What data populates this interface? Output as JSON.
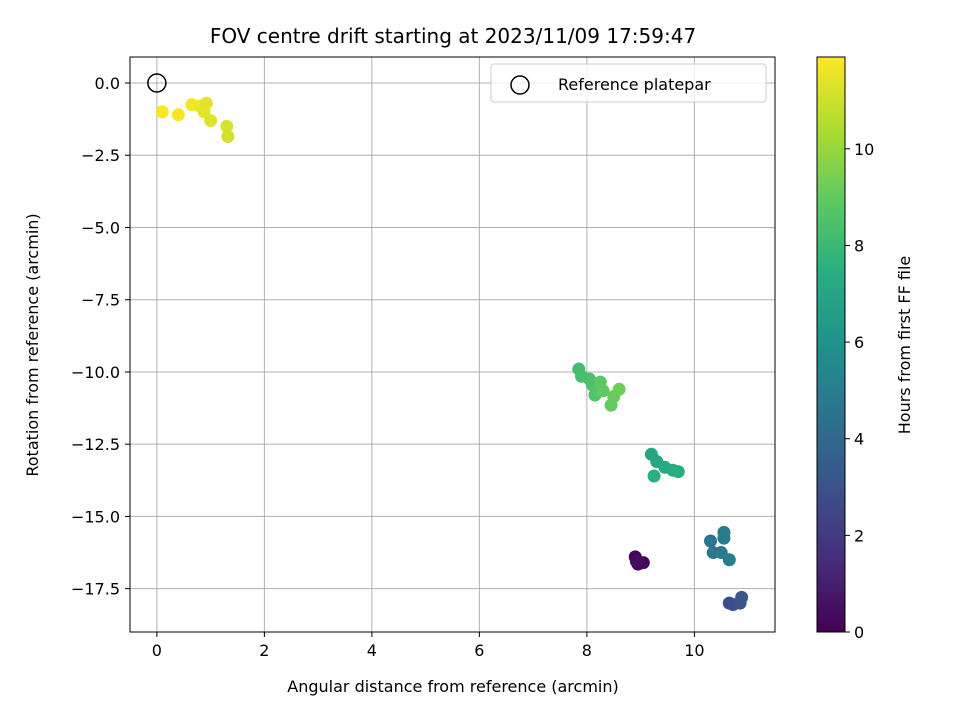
{
  "chart_data": {
    "type": "scatter",
    "title": "FOV centre drift starting at 2023/11/09 17:59:47",
    "xlabel": "Angular distance from reference (arcmin)",
    "ylabel": "Rotation from reference (arcmin)",
    "xlim": [
      -0.5,
      11.5
    ],
    "ylim": [
      -19.0,
      0.9
    ],
    "xticks": [
      0,
      2,
      4,
      6,
      8,
      10
    ],
    "yticks": [
      0.0,
      -2.5,
      -5.0,
      -7.5,
      -10.0,
      -12.5,
      -15.0,
      -17.5
    ],
    "grid": true,
    "legend": {
      "placement": "top-right",
      "entries": [
        {
          "label": "Reference platepar",
          "marker": "open-circle"
        }
      ]
    },
    "reference_point": {
      "x": 0.0,
      "y": 0.0
    },
    "colorbar": {
      "label": "Hours from first FF file",
      "range": [
        0,
        11.9
      ],
      "ticks": [
        0,
        2,
        4,
        6,
        8,
        10
      ],
      "colormap": "viridis"
    },
    "points": [
      {
        "x": 8.9,
        "y": -16.4,
        "h": 0.1
      },
      {
        "x": 8.95,
        "y": -16.65,
        "h": 0.2
      },
      {
        "x": 9.05,
        "y": -16.6,
        "h": 0.3
      },
      {
        "x": 8.92,
        "y": -16.55,
        "h": 0.4
      },
      {
        "x": 10.65,
        "y": -18.0,
        "h": 2.6
      },
      {
        "x": 10.72,
        "y": -18.05,
        "h": 2.8
      },
      {
        "x": 10.85,
        "y": -18.0,
        "h": 3.0
      },
      {
        "x": 10.88,
        "y": -17.8,
        "h": 3.2
      },
      {
        "x": 10.3,
        "y": -15.85,
        "h": 4.6
      },
      {
        "x": 10.35,
        "y": -16.25,
        "h": 4.7
      },
      {
        "x": 10.5,
        "y": -16.25,
        "h": 4.8
      },
      {
        "x": 10.55,
        "y": -15.55,
        "h": 4.9
      },
      {
        "x": 10.55,
        "y": -15.75,
        "h": 5.0
      },
      {
        "x": 10.65,
        "y": -16.5,
        "h": 5.1
      },
      {
        "x": 9.2,
        "y": -12.85,
        "h": 7.0
      },
      {
        "x": 9.3,
        "y": -13.1,
        "h": 7.1
      },
      {
        "x": 9.45,
        "y": -13.3,
        "h": 7.2
      },
      {
        "x": 9.6,
        "y": -13.4,
        "h": 7.3
      },
      {
        "x": 9.7,
        "y": -13.45,
        "h": 7.4
      },
      {
        "x": 9.25,
        "y": -13.6,
        "h": 7.5
      },
      {
        "x": 7.85,
        "y": -9.9,
        "h": 8.2
      },
      {
        "x": 7.9,
        "y": -10.15,
        "h": 8.3
      },
      {
        "x": 8.05,
        "y": -10.25,
        "h": 8.4
      },
      {
        "x": 8.1,
        "y": -10.45,
        "h": 8.5
      },
      {
        "x": 8.15,
        "y": -10.8,
        "h": 8.6
      },
      {
        "x": 8.2,
        "y": -10.6,
        "h": 8.7
      },
      {
        "x": 8.25,
        "y": -10.35,
        "h": 8.8
      },
      {
        "x": 8.3,
        "y": -10.65,
        "h": 8.9
      },
      {
        "x": 8.45,
        "y": -11.15,
        "h": 9.0
      },
      {
        "x": 8.5,
        "y": -10.85,
        "h": 9.1
      },
      {
        "x": 8.6,
        "y": -10.6,
        "h": 9.2
      },
      {
        "x": 0.1,
        "y": -1.0,
        "h": 11.9
      },
      {
        "x": 0.4,
        "y": -1.1,
        "h": 11.8
      },
      {
        "x": 0.65,
        "y": -0.75,
        "h": 11.7
      },
      {
        "x": 0.8,
        "y": -0.8,
        "h": 11.6
      },
      {
        "x": 0.88,
        "y": -1.0,
        "h": 11.5
      },
      {
        "x": 0.92,
        "y": -0.7,
        "h": 11.4
      },
      {
        "x": 1.0,
        "y": -1.3,
        "h": 11.3
      },
      {
        "x": 1.3,
        "y": -1.5,
        "h": 11.2
      },
      {
        "x": 1.32,
        "y": -1.85,
        "h": 11.1
      }
    ]
  }
}
